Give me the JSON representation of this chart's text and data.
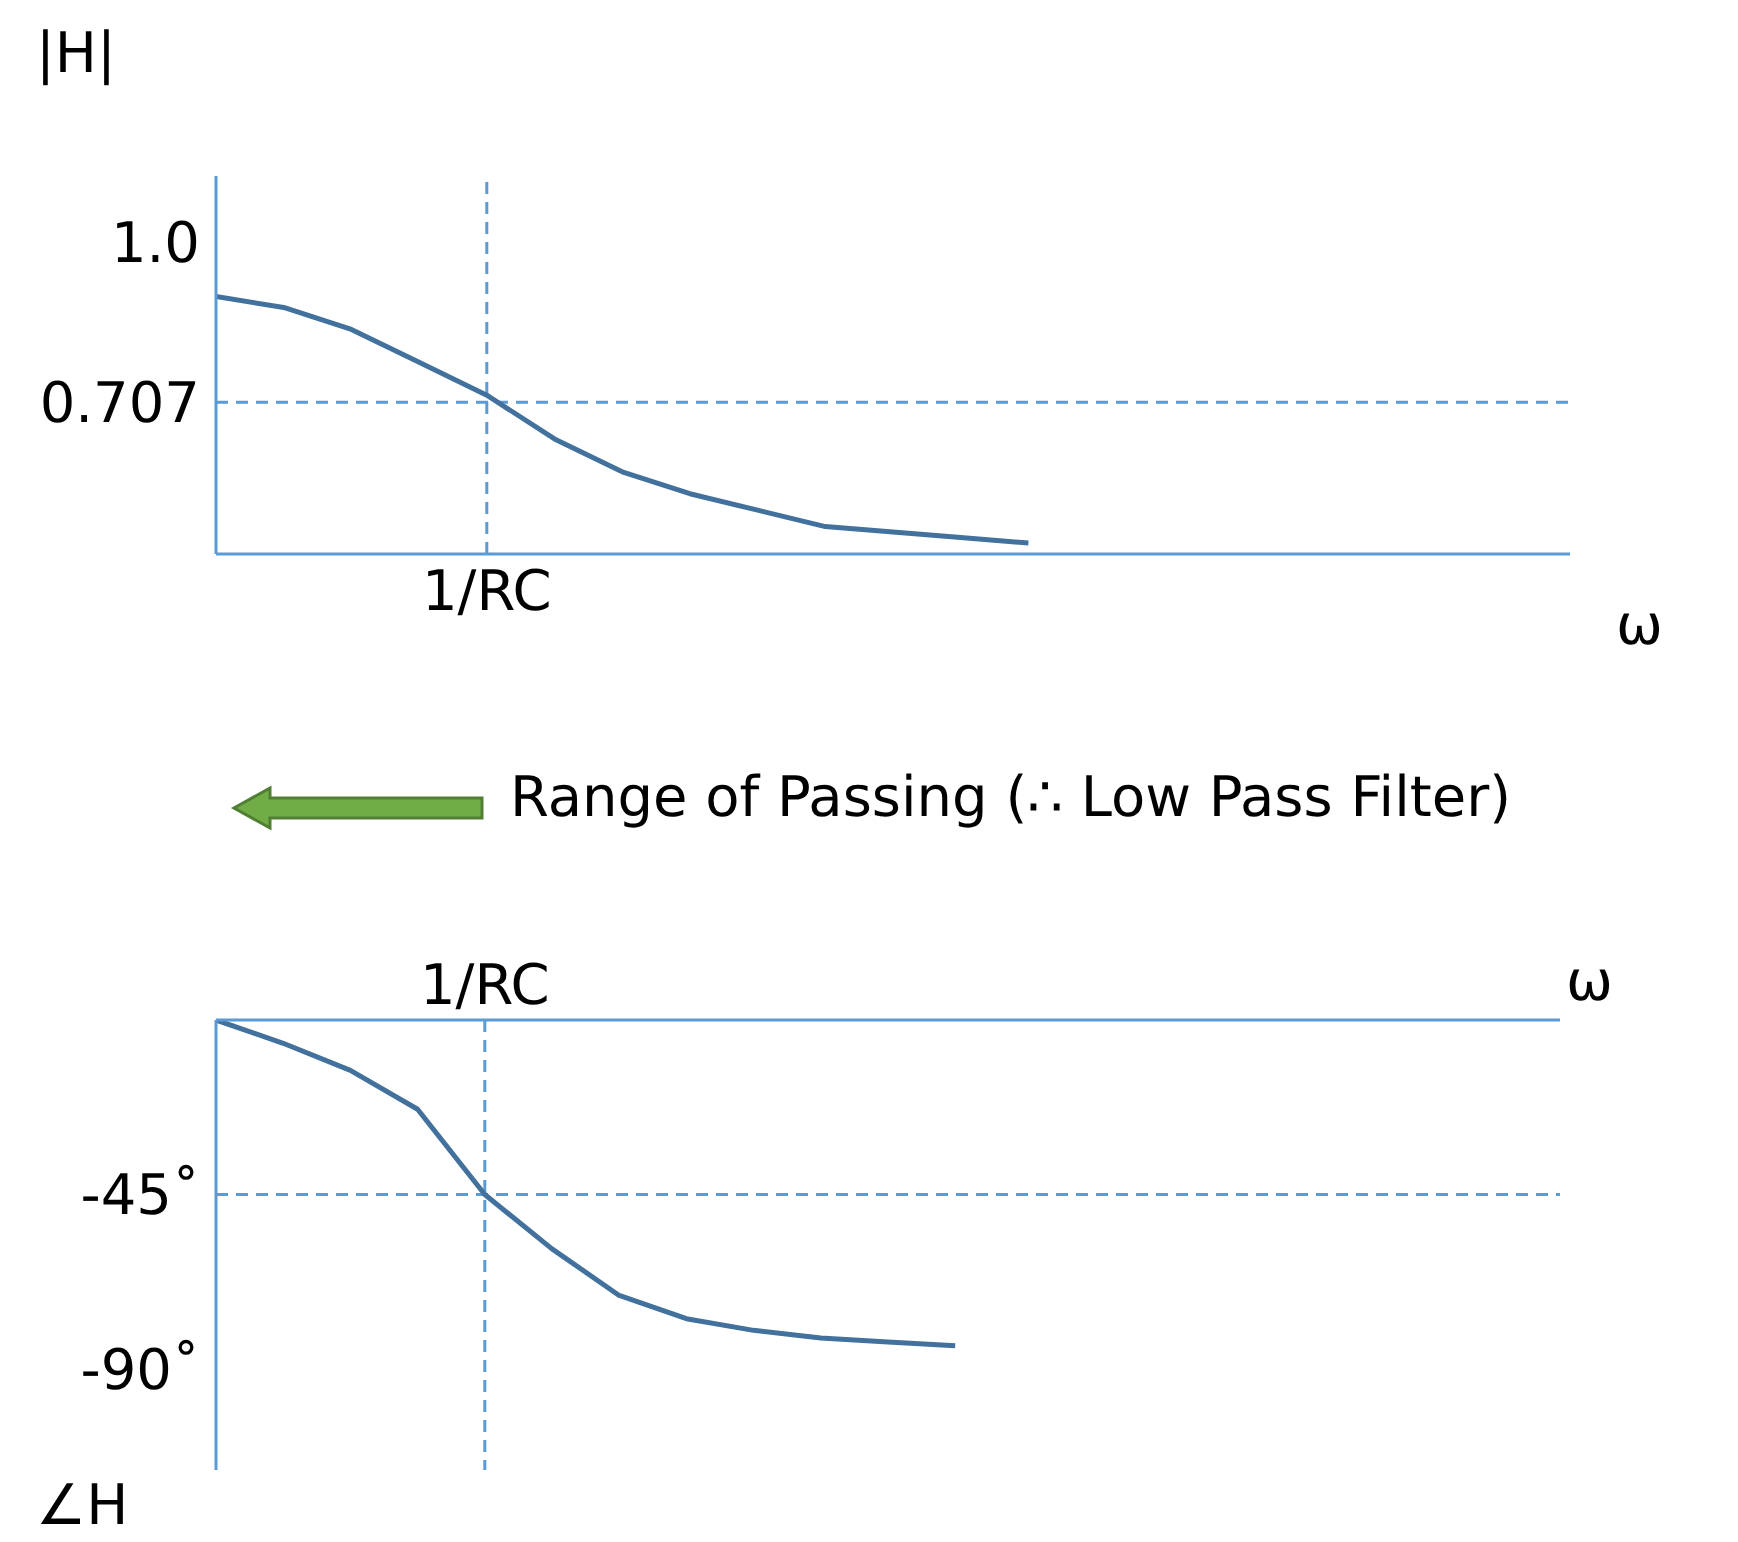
{
  "chart_data": [
    {
      "type": "line",
      "ylabel": "|H|",
      "xlabel": "ω",
      "ylim": [
        0.43,
        1.12
      ],
      "yticks": [
        {
          "value": 1,
          "label": "1.0"
        },
        {
          "value": 0.707,
          "label": "0.707"
        }
      ],
      "marker": "none",
      "line_style": "solid",
      "categories": [
        null,
        null,
        null,
        null,
        "1/RC",
        null,
        null,
        null,
        null,
        null,
        null,
        null,
        null,
        null,
        null,
        null,
        null,
        null,
        null,
        null,
        null
      ],
      "series": [
        {
          "color": "#41719c",
          "values": [
            0.9,
            0.88,
            0.84,
            0.78,
            0.72,
            0.64,
            0.58,
            0.54,
            0.51,
            0.48,
            0.47,
            0.46,
            0.45,
            null,
            null,
            null,
            null,
            null,
            null,
            null,
            null
          ]
        }
      ],
      "ref_lines": [
        {
          "axis": "y",
          "value": 0.707,
          "color": "#5b9bd5",
          "line_style": "dashed"
        },
        {
          "axis": "x",
          "value": "1/RC",
          "color": "#5b9bd5",
          "line_style": "dashed"
        }
      ],
      "annotations": [
        "Range of Passing (∴ Low Pass Filter)"
      ]
    },
    {
      "type": "line",
      "ylabel": "∠H",
      "xlabel": "ω",
      "ylim": [
        -116,
        0
      ],
      "yticks": [
        {
          "value": -45,
          "label": "-45˚"
        },
        {
          "value": -90,
          "label": "-90˚"
        }
      ],
      "marker": "none",
      "line_style": "solid",
      "categories": [
        null,
        null,
        null,
        null,
        "1/RC",
        null,
        null,
        null,
        null,
        null,
        null,
        null,
        null,
        null,
        null,
        null,
        null,
        null,
        null,
        null,
        null
      ],
      "series": [
        {
          "color": "#41719c",
          "values": [
            0,
            -6,
            -13,
            -23,
            -45,
            -59,
            -71,
            -77,
            -80,
            -82,
            -83,
            -84,
            null,
            null,
            null,
            null,
            null,
            null,
            null,
            null,
            null
          ]
        }
      ],
      "ref_lines": [
        {
          "axis": "y",
          "value": -45,
          "color": "#5b9bd5",
          "line_style": "dashed"
        },
        {
          "axis": "x",
          "value": "1/RC",
          "color": "#5b9bd5",
          "line_style": "dashed"
        }
      ]
    }
  ]
}
